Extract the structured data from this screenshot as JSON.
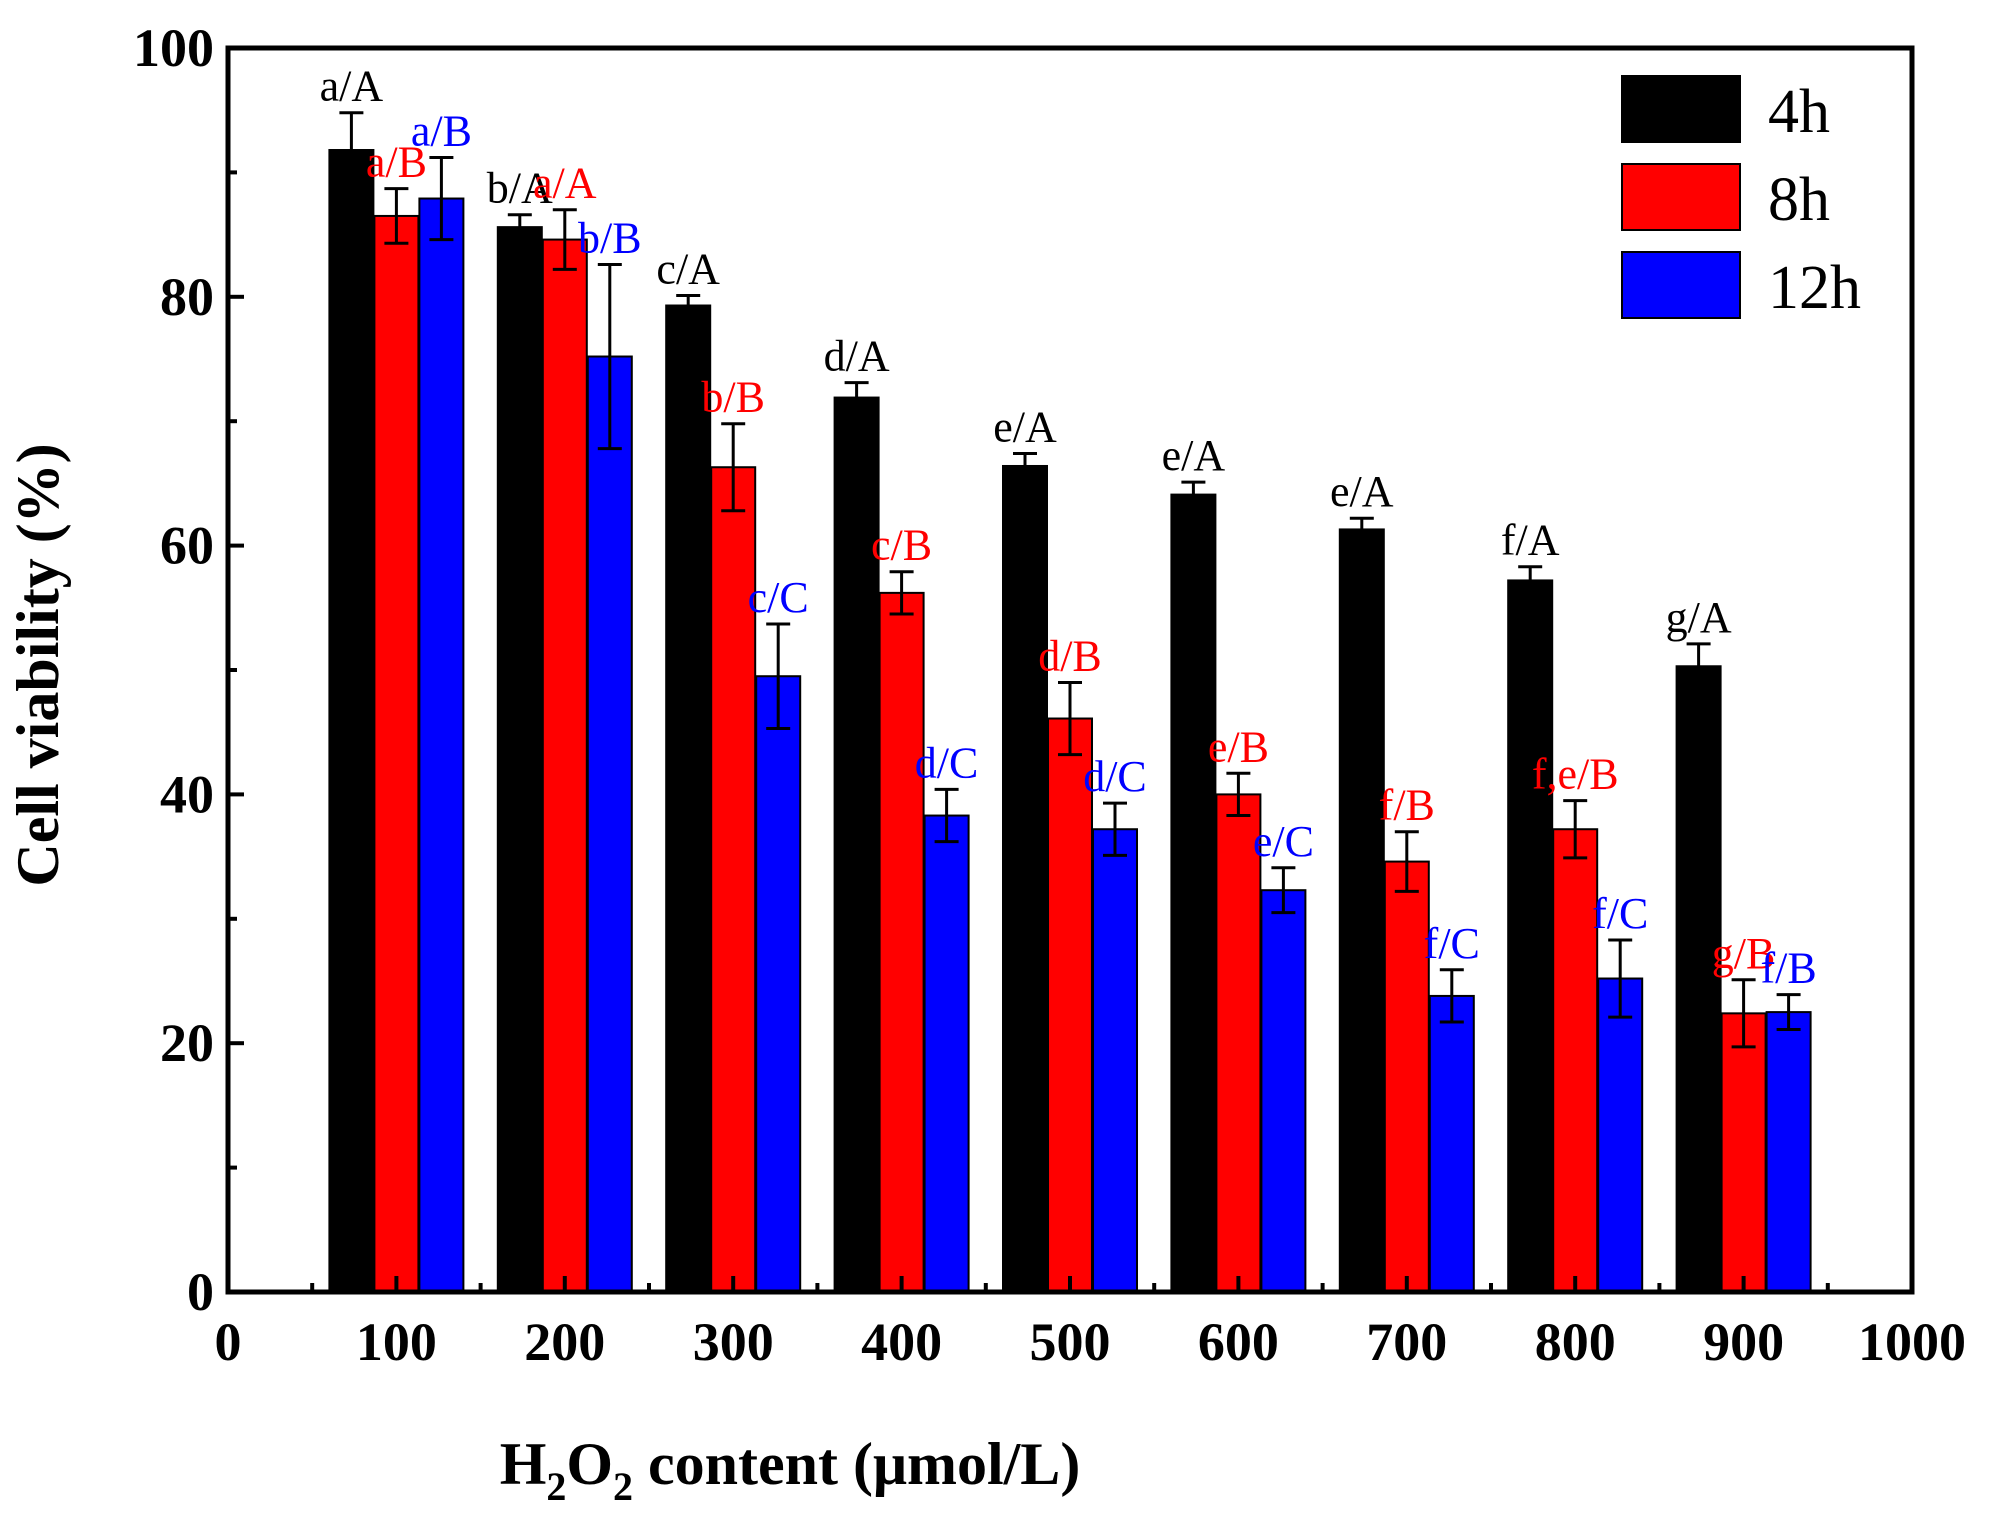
{
  "chart_data": {
    "type": "bar",
    "title": "",
    "xlabel": {
      "prefix": "H",
      "sub1": "2",
      "mid": "O",
      "sub2": "2",
      "suffix": " content (μmol/L)"
    },
    "ylabel": "Cell viability (%)",
    "xlim": [
      0,
      1000
    ],
    "ylim": [
      0,
      100
    ],
    "x_ticks": [
      "0",
      "100",
      "200",
      "300",
      "400",
      "500",
      "600",
      "700",
      "800",
      "900",
      "1000"
    ],
    "y_ticks": [
      "0",
      "20",
      "40",
      "60",
      "80",
      "100"
    ],
    "categories": [
      100,
      200,
      300,
      400,
      500,
      600,
      700,
      800,
      900
    ],
    "legend_position": "top-right",
    "series": [
      {
        "name": "4h",
        "color": "#000000",
        "values": [
          91.8,
          85.6,
          79.3,
          71.9,
          66.4,
          64.1,
          61.3,
          57.2,
          50.3
        ],
        "errors": [
          3.0,
          1.0,
          0.8,
          1.2,
          1.0,
          1.0,
          0.9,
          1.1,
          1.8
        ],
        "labels": [
          "a/A",
          "b/A",
          "c/A",
          "d/A",
          "e/A",
          "e/A",
          "e/A",
          "f/A",
          "g/A"
        ]
      },
      {
        "name": "8h",
        "color": "#ff0000",
        "values": [
          86.5,
          84.6,
          66.3,
          56.2,
          46.1,
          40.0,
          34.6,
          37.2,
          22.4
        ],
        "errors": [
          2.2,
          2.4,
          3.5,
          1.7,
          2.9,
          1.7,
          2.4,
          2.3,
          2.7
        ],
        "labels": [
          "a/B",
          "a/A",
          "b/B",
          "c/B",
          "d/B",
          "e/B",
          "f/B",
          "f,e/B",
          "g/B"
        ]
      },
      {
        "name": "12h",
        "color": "#0000ff",
        "values": [
          87.9,
          75.2,
          49.5,
          38.3,
          37.2,
          32.3,
          23.8,
          25.2,
          22.5
        ],
        "errors": [
          3.3,
          7.4,
          4.2,
          2.1,
          2.1,
          1.8,
          2.1,
          3.1,
          1.4
        ],
        "labels": [
          "a/B",
          "b/B",
          "c/C",
          "d/C",
          "d/C",
          "e/C",
          "f/C",
          "f/C",
          "f/B"
        ]
      }
    ]
  }
}
